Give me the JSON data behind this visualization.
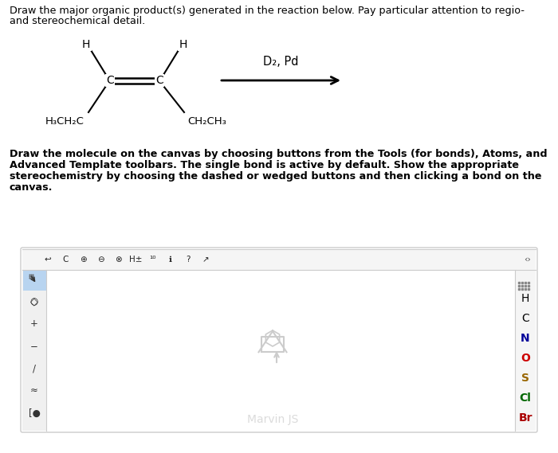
{
  "title_line1": "Draw the major organic product(s) generated in the reaction below. Pay particular attention to regio-",
  "title_line2": "and stereochemical detail.",
  "body_text_bold": "Draw the molecule on the canvas by choosing buttons from the Tools (for bonds), Atoms, and\nAdvanced Template toolbars. The single bond is active by default. Show the appropriate\nstereochemistry by choosing the dashed or wedged buttons and then clicking a bond on the\ncanvas.",
  "reagent_text": "D₂, Pd",
  "H_top_left": "H",
  "H_top_right": "H",
  "label_left": "H₃CH₂C",
  "label_right": "CH₂CH₃",
  "C_label": "C",
  "toolbar_right": [
    "H",
    "C",
    "N",
    "O",
    "S",
    "Cl",
    "Br"
  ],
  "toolbar_right_colors": [
    "#000000",
    "#000000",
    "#000099",
    "#cc0000",
    "#996600",
    "#006600",
    "#aa0000"
  ],
  "background_color": "#ffffff"
}
